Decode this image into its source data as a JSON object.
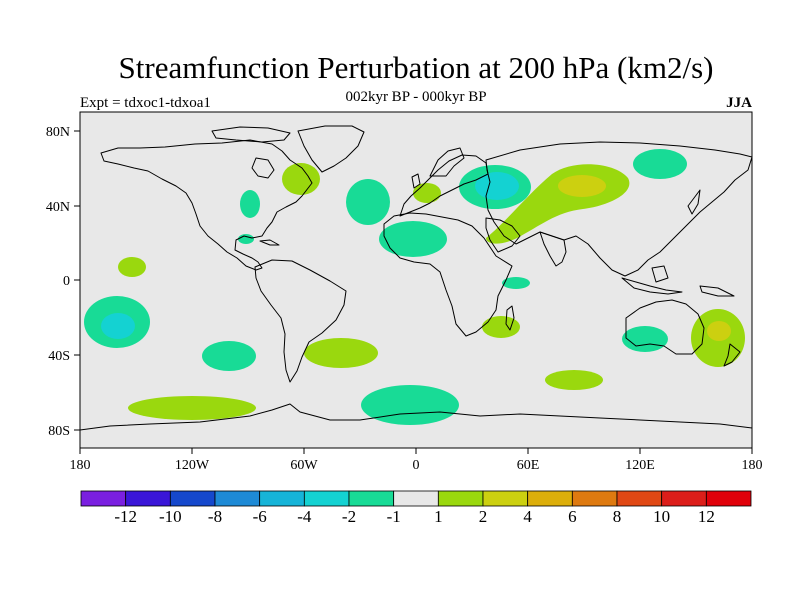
{
  "title": "Streamfunction Perturbation at 200 hPa (km2/s)",
  "subtitle": "002kyr BP - 000kyr BP",
  "experiment_label": "Expt = tdxoc1-tdxoa1",
  "season": "JJA",
  "axes": {
    "x_ticks": [
      "180",
      "120W",
      "60W",
      "0",
      "60E",
      "120E",
      "180"
    ],
    "y_ticks": [
      "80N",
      "40N",
      "0",
      "40S",
      "80S"
    ]
  },
  "colorbar": {
    "labels": [
      "-12",
      "-10",
      "-8",
      "-6",
      "-4",
      "-2",
      "-1",
      "1",
      "2",
      "4",
      "6",
      "8",
      "10",
      "12"
    ],
    "colors": [
      "#7a1fe0",
      "#3a16d8",
      "#1548cc",
      "#1e8ad6",
      "#16b4d8",
      "#14d2d2",
      "#18db96",
      "#e8e8e8",
      "#9ad80e",
      "#ccd010",
      "#dcae0a",
      "#de7a10",
      "#e04814",
      "#dc1e1a",
      "#e0000a"
    ]
  },
  "icons": {
    "map": "world-coastline-map"
  },
  "chart_data": {
    "type": "contour-map",
    "projection": "cylindrical-equidistant",
    "lon_range": [
      -180,
      180
    ],
    "lat_range": [
      -90,
      90
    ],
    "variable": "200 hPa streamfunction perturbation (km2/s)",
    "anomaly_regions": [
      {
        "name": "east-pacific-subtropical-low",
        "lon": -164,
        "lat": -25,
        "class": "-1 to -4",
        "core": "-2 to -4"
      },
      {
        "name": "east-pacific-tropical-high",
        "lon": -153,
        "lat": 7,
        "class": "1 to 2"
      },
      {
        "name": "southeast-pacific-low",
        "lon": -99,
        "lat": -40,
        "class": "-1 to -2"
      },
      {
        "name": "south-pacific-polar-high",
        "lon": -136,
        "lat": -68,
        "class": "1 to 2"
      },
      {
        "name": "north-america-low",
        "lon": -84,
        "lat": 41,
        "class": "-1 to -2"
      },
      {
        "name": "gulf-of-mexico-low",
        "lon": -86,
        "lat": 22,
        "class": "-1 to -2"
      },
      {
        "name": "eastern-canada-high",
        "lon": -63,
        "lat": 53,
        "class": "1 to 2"
      },
      {
        "name": "south-atlantic-high",
        "lon": -40,
        "lat": -39,
        "class": "1 to 2"
      },
      {
        "name": "north-atlantic-low",
        "lon": -28,
        "lat": 42,
        "class": "-1 to -2"
      },
      {
        "name": "africa-sahara-low",
        "lon": 9,
        "lat": 23,
        "class": "-1 to -2"
      },
      {
        "name": "europe-high",
        "lon": 6,
        "lat": 47,
        "class": "1 to 2"
      },
      {
        "name": "southern-ocean-low",
        "lon": -3,
        "lat": -67,
        "class": "-1 to -2"
      },
      {
        "name": "eastern-europe-low",
        "lon": 40,
        "lat": 50,
        "class": "-1 to -4",
        "core": "-2 to -4"
      },
      {
        "name": "central-asia-high",
        "lon": 82,
        "lat": 45,
        "class": "1 to 4",
        "core": "2 to 4"
      },
      {
        "name": "arctic-siberia-low",
        "lon": 117,
        "lat": 63,
        "class": "-1 to -2"
      },
      {
        "name": "madagascar-high",
        "lon": 45,
        "lat": -23,
        "class": "1 to 2"
      },
      {
        "name": "indian-ocean-east-africa-low",
        "lon": 48,
        "lat": -2,
        "class": "-1 to -2"
      },
      {
        "name": "southern-indian-ocean-high",
        "lon": 82,
        "lat": -53,
        "class": "1 to 2"
      },
      {
        "name": "australia-low",
        "lon": 123,
        "lat": -31,
        "class": "-1 to -2"
      },
      {
        "name": "new-zealand-high",
        "lon": 161,
        "lat": -31,
        "class": "1 to 4",
        "core": "2 to 4"
      }
    ]
  }
}
